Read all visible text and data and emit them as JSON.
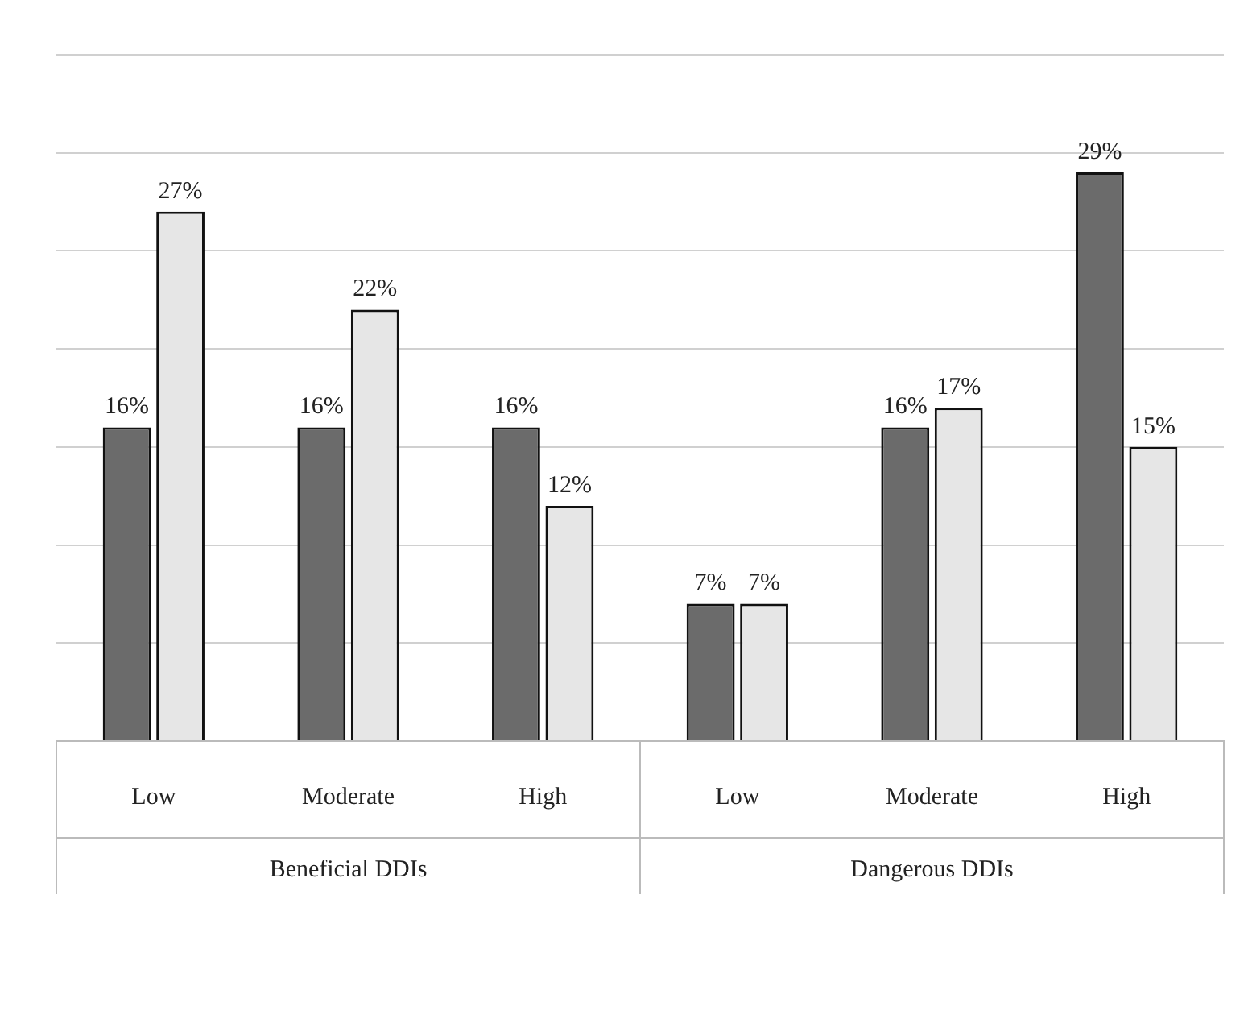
{
  "chart_data": {
    "type": "bar",
    "categories": [
      "Low",
      "Moderate",
      "High",
      "Low",
      "Moderate",
      "High"
    ],
    "annotations": [
      "Beneficial DDIs",
      "Dangerous DDIs"
    ],
    "series": [
      {
        "color": "#6b6b6b",
        "values": [
          16,
          16,
          16,
          7,
          16,
          29
        ],
        "value_labels": [
          "16%",
          "16%",
          "16%",
          "7%",
          "16%",
          "29%"
        ]
      },
      {
        "color": "#e6e6e6",
        "values": [
          27,
          22,
          12,
          7,
          17,
          15
        ],
        "value_labels": [
          "27%",
          "22%",
          "12%",
          "7%",
          "17%",
          "15%"
        ]
      }
    ],
    "ylim": [
      0,
      35
    ],
    "yticks": [
      {
        "value": 0,
        "label": null
      },
      {
        "value": 5,
        "label": null
      },
      {
        "value": 10,
        "label": null
      },
      {
        "value": 15,
        "label": null
      },
      {
        "value": 20,
        "label": null
      },
      {
        "value": 25,
        "label": null
      },
      {
        "value": 30,
        "label": null
      }
    ],
    "grid": "y",
    "tick_labels": "x",
    "legend": false
  }
}
